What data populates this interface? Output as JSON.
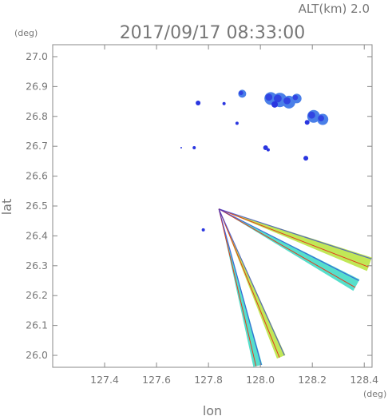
{
  "chart_data": {
    "type": "scatter",
    "title": "2017/09/17 08:33:00",
    "subtitle": "ALT(km) 2.0",
    "xlabel": "lon",
    "ylabel": "lat",
    "x_unit": "(deg)",
    "y_unit": "(deg)",
    "xlim": [
      127.2,
      128.43
    ],
    "ylim": [
      25.96,
      27.04
    ],
    "xticks": [
      "127.4",
      "127.6",
      "127.8",
      "128.0",
      "128.2",
      "128.4"
    ],
    "yticks": [
      "26.0",
      "26.1",
      "26.2",
      "26.3",
      "26.4",
      "26.5",
      "26.6",
      "26.7",
      "26.8",
      "26.9",
      "27.0"
    ],
    "grid": false,
    "colors": {
      "axis": "#888888",
      "text": "#777777",
      "cell_low": "#2a36e0",
      "cell_mid": "#4a7fe8",
      "beam_edge": "#e23a1c",
      "beam_mid": "#b6e43a",
      "beam_alt": "#38d9c2"
    },
    "series": [
      {
        "marker": "cell",
        "points": [
          {
            "lon": 127.76,
            "lat": 26.845,
            "s": 3
          },
          {
            "lon": 127.86,
            "lat": 26.843,
            "s": 2
          },
          {
            "lon": 127.93,
            "lat": 26.876,
            "s": 5
          },
          {
            "lon": 127.91,
            "lat": 26.777,
            "s": 2
          },
          {
            "lon": 128.04,
            "lat": 26.86,
            "s": 8
          },
          {
            "lon": 128.075,
            "lat": 26.855,
            "s": 9
          },
          {
            "lon": 128.11,
            "lat": 26.848,
            "s": 8
          },
          {
            "lon": 128.14,
            "lat": 26.86,
            "s": 6
          },
          {
            "lon": 128.055,
            "lat": 26.84,
            "s": 4
          },
          {
            "lon": 128.205,
            "lat": 26.8,
            "s": 8
          },
          {
            "lon": 128.24,
            "lat": 26.79,
            "s": 7
          },
          {
            "lon": 128.18,
            "lat": 26.78,
            "s": 3
          },
          {
            "lon": 128.02,
            "lat": 26.695,
            "s": 3
          },
          {
            "lon": 128.03,
            "lat": 26.688,
            "s": 2
          },
          {
            "lon": 127.745,
            "lat": 26.695,
            "s": 2
          },
          {
            "lon": 127.695,
            "lat": 26.695,
            "s": 1
          },
          {
            "lon": 128.175,
            "lat": 26.66,
            "s": 3
          },
          {
            "lon": 127.78,
            "lat": 26.42,
            "s": 2
          }
        ]
      },
      {
        "marker": "beam",
        "origin": {
          "lon": 127.84,
          "lat": 26.49
        },
        "ends": [
          {
            "lon": 128.42,
            "lat": 26.305,
            "w": 0.055
          },
          {
            "lon": 128.37,
            "lat": 26.235,
            "w": 0.05
          },
          {
            "lon": 128.08,
            "lat": 25.995,
            "w": 0.035
          },
          {
            "lon": 127.99,
            "lat": 25.965,
            "w": 0.035
          }
        ]
      }
    ]
  }
}
